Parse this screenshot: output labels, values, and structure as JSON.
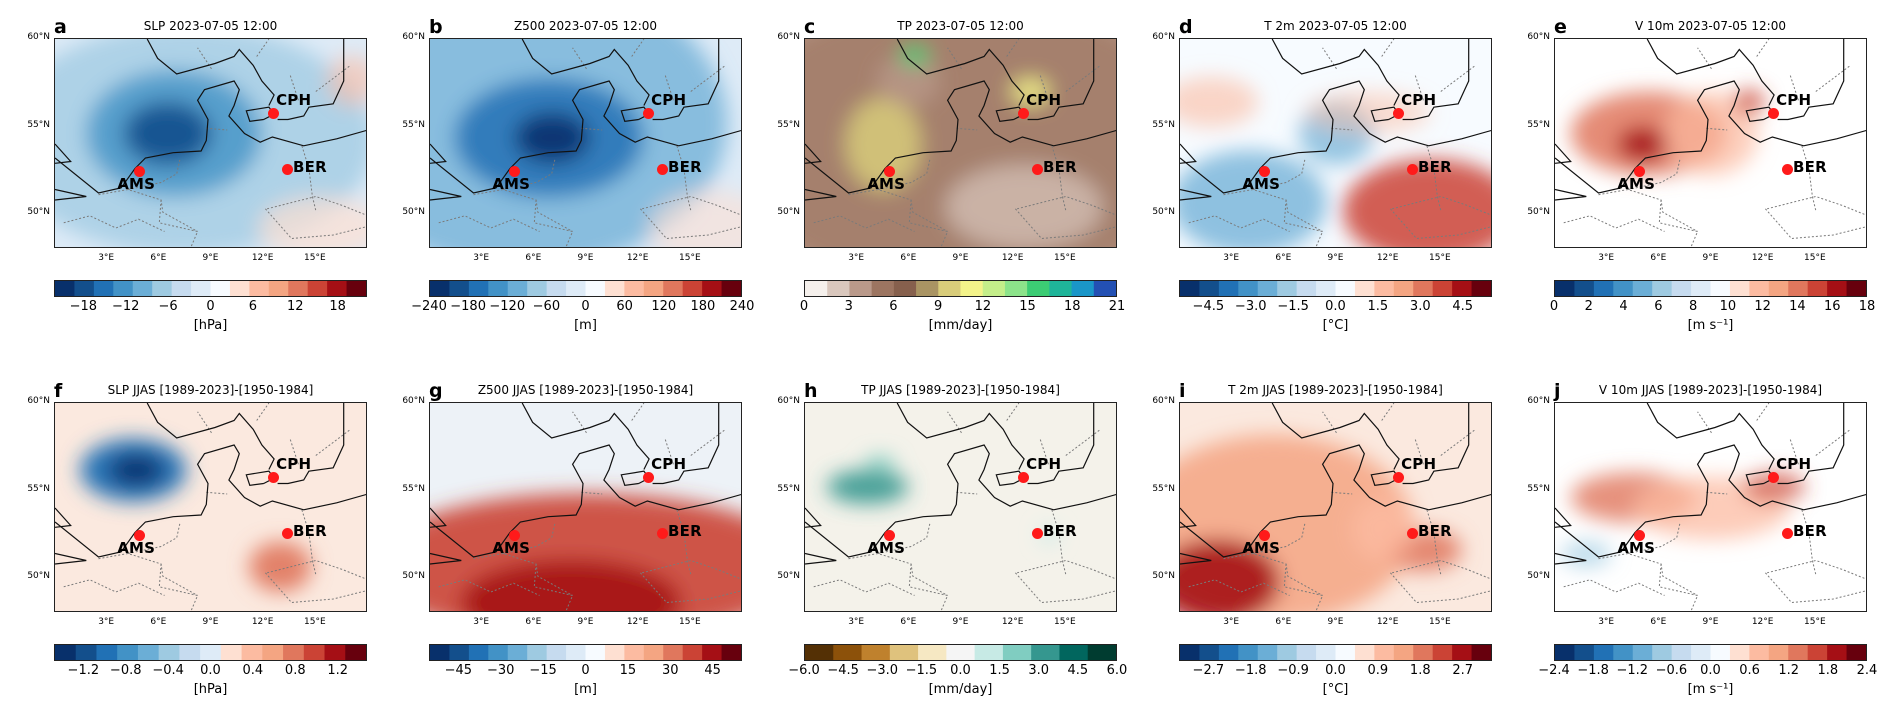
{
  "chart_data": [
    {
      "type": "heatmap",
      "letter": "a",
      "title": "SLP 2023-07-05 12:00",
      "unit": "[hPa]",
      "ticks": [
        "−18",
        "−12",
        "−6",
        "0",
        "6",
        "12",
        "18"
      ],
      "colors": [
        "#08306b",
        "#134f8c",
        "#2171b5",
        "#4292c6",
        "#6baed6",
        "#9ecae1",
        "#c6dbef",
        "#deebf7",
        "#f7fbff",
        "#fee0d2",
        "#fcbba1",
        "#f4a582",
        "#e0775d",
        "#cb4335",
        "#a50f15",
        "#67000d"
      ],
      "blobs": [
        {
          "cx": 0.42,
          "cy": 0.48,
          "rx": 0.6,
          "ry": 0.55,
          "c": "#9ecae1",
          "o": 0.75
        },
        {
          "cx": 0.38,
          "cy": 0.45,
          "rx": 0.28,
          "ry": 0.3,
          "c": "#4292c6",
          "o": 0.8
        },
        {
          "cx": 0.36,
          "cy": 0.45,
          "rx": 0.14,
          "ry": 0.15,
          "c": "#134f8c",
          "o": 0.9
        },
        {
          "cx": 0.85,
          "cy": 0.9,
          "rx": 0.2,
          "ry": 0.15,
          "c": "#fee0d2",
          "o": 0.7
        },
        {
          "cx": 0.95,
          "cy": 0.2,
          "rx": 0.08,
          "ry": 0.12,
          "c": "#fcbba1",
          "o": 0.6
        }
      ],
      "bg": "#deebf7"
    },
    {
      "type": "heatmap",
      "letter": "b",
      "title": "Z500 2023-07-05 12:00",
      "unit": "[m]",
      "ticks": [
        "−240",
        "−180",
        "−120",
        "−60",
        "0",
        "60",
        "120",
        "180",
        "240"
      ],
      "colors": [
        "#08306b",
        "#134f8c",
        "#2171b5",
        "#4292c6",
        "#6baed6",
        "#9ecae1",
        "#c6dbef",
        "#deebf7",
        "#f7fbff",
        "#fee0d2",
        "#fcbba1",
        "#f4a582",
        "#e0775d",
        "#cb4335",
        "#a50f15",
        "#67000d"
      ],
      "blobs": [
        {
          "cx": 0.3,
          "cy": 0.4,
          "rx": 0.65,
          "ry": 0.7,
          "c": "#6baed6",
          "o": 0.75
        },
        {
          "cx": 0.38,
          "cy": 0.47,
          "rx": 0.3,
          "ry": 0.28,
          "c": "#2171b5",
          "o": 0.85
        },
        {
          "cx": 0.39,
          "cy": 0.47,
          "rx": 0.12,
          "ry": 0.12,
          "c": "#08306b",
          "o": 0.9
        },
        {
          "cx": 0.9,
          "cy": 0.9,
          "rx": 0.2,
          "ry": 0.18,
          "c": "#fee0d2",
          "o": 0.6
        }
      ],
      "bg": "#deebf7"
    },
    {
      "type": "heatmap",
      "letter": "c",
      "title": "TP 2023-07-05 12:00",
      "unit": "[mm/day]",
      "ticks": [
        "0",
        "3",
        "6",
        "9",
        "12",
        "15",
        "18",
        "21"
      ],
      "colors": [
        "#f5f0ec",
        "#d9c7bd",
        "#b9998a",
        "#9c7561",
        "#86604d",
        "#a99463",
        "#d8cc7a",
        "#f3f38a",
        "#c4ee8a",
        "#8ce38a",
        "#3ccc74",
        "#1fb59a",
        "#1a96c8",
        "#2350b3"
      ],
      "blobs": [
        {
          "cx": 0.5,
          "cy": 0.5,
          "rx": 0.75,
          "ry": 0.7,
          "c": "#9c7561",
          "o": 0.7
        },
        {
          "cx": 0.25,
          "cy": 0.5,
          "rx": 0.12,
          "ry": 0.22,
          "c": "#d8cc7a",
          "o": 0.85
        },
        {
          "cx": 0.33,
          "cy": 0.2,
          "rx": 0.1,
          "ry": 0.12,
          "c": "#b9998a",
          "o": 0.8
        },
        {
          "cx": 0.35,
          "cy": 0.08,
          "rx": 0.05,
          "ry": 0.05,
          "c": "#3ccc74",
          "o": 0.9
        },
        {
          "cx": 0.7,
          "cy": 0.8,
          "rx": 0.25,
          "ry": 0.2,
          "c": "#d9c7bd",
          "o": 0.7
        },
        {
          "cx": 0.72,
          "cy": 0.25,
          "rx": 0.06,
          "ry": 0.06,
          "c": "#f3f38a",
          "o": 0.9
        }
      ],
      "bg": "#b9998a"
    },
    {
      "type": "heatmap",
      "letter": "d",
      "title": "T 2m 2023-07-05 12:00",
      "unit": "[°C]",
      "ticks": [
        "−4.5",
        "−3.0",
        "−1.5",
        "0.0",
        "1.5",
        "3.0",
        "4.5"
      ],
      "colors": [
        "#08306b",
        "#134f8c",
        "#2171b5",
        "#4292c6",
        "#6baed6",
        "#9ecae1",
        "#c6dbef",
        "#deebf7",
        "#f7fbff",
        "#fee0d2",
        "#fcbba1",
        "#f4a582",
        "#e0775d",
        "#cb4335",
        "#a50f15",
        "#67000d"
      ],
      "blobs": [
        {
          "cx": 0.22,
          "cy": 0.78,
          "rx": 0.25,
          "ry": 0.25,
          "c": "#6baed6",
          "o": 0.75
        },
        {
          "cx": 0.5,
          "cy": 0.45,
          "rx": 0.12,
          "ry": 0.15,
          "c": "#6baed6",
          "o": 0.7
        },
        {
          "cx": 0.8,
          "cy": 0.82,
          "rx": 0.28,
          "ry": 0.25,
          "c": "#cb4335",
          "o": 0.85
        },
        {
          "cx": 0.1,
          "cy": 0.3,
          "rx": 0.15,
          "ry": 0.12,
          "c": "#fcbba1",
          "o": 0.6
        },
        {
          "cx": 0.6,
          "cy": 0.35,
          "rx": 0.2,
          "ry": 0.1,
          "c": "#fcbba1",
          "o": 0.5
        }
      ],
      "bg": "#f7fbff"
    },
    {
      "type": "heatmap",
      "letter": "e",
      "title": "V 10m 2023-07-05 12:00",
      "unit": "[m s⁻¹]",
      "ticks": [
        "0",
        "2",
        "4",
        "6",
        "8",
        "10",
        "12",
        "14",
        "16",
        "18"
      ],
      "colors": [
        "#08306b",
        "#134f8c",
        "#2171b5",
        "#4292c6",
        "#6baed6",
        "#9ecae1",
        "#c6dbef",
        "#deebf7",
        "#f7fbff",
        "#fee0d2",
        "#fcbba1",
        "#f4a582",
        "#e0775d",
        "#cb4335",
        "#a50f15",
        "#67000d"
      ],
      "blobs": [
        {
          "cx": 0.3,
          "cy": 0.45,
          "rx": 0.25,
          "ry": 0.2,
          "c": "#e0775d",
          "o": 0.85
        },
        {
          "cx": 0.28,
          "cy": 0.5,
          "rx": 0.08,
          "ry": 0.08,
          "c": "#a50f15",
          "o": 0.9
        },
        {
          "cx": 0.5,
          "cy": 0.45,
          "rx": 0.15,
          "ry": 0.2,
          "c": "#fcbba1",
          "o": 0.7
        },
        {
          "cx": 0.62,
          "cy": 0.3,
          "rx": 0.05,
          "ry": 0.06,
          "c": "#cb4335",
          "o": 0.8
        }
      ],
      "bg": "#ffffff"
    },
    {
      "type": "heatmap",
      "letter": "f",
      "title": "SLP JJAS [1989-2023]-[1950-1984]",
      "unit": "[hPa]",
      "ticks": [
        "−1.2",
        "−0.8",
        "−0.4",
        "0.0",
        "0.4",
        "0.8",
        "1.2"
      ],
      "colors": [
        "#08306b",
        "#134f8c",
        "#2171b5",
        "#4292c6",
        "#6baed6",
        "#9ecae1",
        "#c6dbef",
        "#deebf7",
        "#fee0d2",
        "#fcbba1",
        "#f4a582",
        "#e0775d",
        "#cb4335",
        "#a50f15",
        "#67000d"
      ],
      "blobs": [
        {
          "cx": 0.25,
          "cy": 0.32,
          "rx": 0.17,
          "ry": 0.15,
          "c": "#2171b5",
          "o": 0.95
        },
        {
          "cx": 0.26,
          "cy": 0.32,
          "rx": 0.09,
          "ry": 0.08,
          "c": "#08306b",
          "o": 0.9
        },
        {
          "cx": 0.72,
          "cy": 0.78,
          "rx": 0.1,
          "ry": 0.12,
          "c": "#e0775d",
          "o": 0.9
        }
      ],
      "bg": "#fbe9df"
    },
    {
      "type": "heatmap",
      "letter": "g",
      "title": "Z500 JJAS [1989-2023]-[1950-1984]",
      "unit": "[m]",
      "ticks": [
        "−45",
        "−30",
        "−15",
        "0",
        "15",
        "30",
        "45"
      ],
      "colors": [
        "#08306b",
        "#134f8c",
        "#2171b5",
        "#4292c6",
        "#6baed6",
        "#9ecae1",
        "#c6dbef",
        "#deebf7",
        "#f7fbff",
        "#fee0d2",
        "#fcbba1",
        "#f4a582",
        "#e0775d",
        "#cb4335",
        "#a50f15",
        "#67000d"
      ],
      "blobs": [
        {
          "cx": 0.5,
          "cy": 0.78,
          "rx": 0.7,
          "ry": 0.35,
          "c": "#cb4335",
          "o": 0.9
        },
        {
          "cx": 0.45,
          "cy": 0.95,
          "rx": 0.35,
          "ry": 0.2,
          "c": "#a50f15",
          "o": 0.9
        }
      ],
      "bg": "#edf2f7"
    },
    {
      "type": "heatmap",
      "letter": "h",
      "title": "TP JJAS [1989-2023]-[1950-1984]",
      "unit": "[mm/day]",
      "ticks": [
        "−6.0",
        "−4.5",
        "−3.0",
        "−1.5",
        "0.0",
        "1.5",
        "3.0",
        "4.5",
        "6.0"
      ],
      "colors": [
        "#543005",
        "#8c510a",
        "#bf812d",
        "#dfc27d",
        "#f6e8c3",
        "#f5f5f5",
        "#c7eae5",
        "#80cdc1",
        "#35978f",
        "#01665e",
        "#003c30"
      ],
      "blobs": [
        {
          "cx": 0.2,
          "cy": 0.4,
          "rx": 0.13,
          "ry": 0.08,
          "c": "#35978f",
          "o": 0.9
        },
        {
          "cx": 0.24,
          "cy": 0.29,
          "rx": 0.05,
          "ry": 0.04,
          "c": "#80cdc1",
          "o": 0.85
        },
        {
          "cx": 0.78,
          "cy": 0.63,
          "rx": 0.03,
          "ry": 0.04,
          "c": "#c7eae5",
          "o": 0.9
        }
      ],
      "bg": "#f4f2ea"
    },
    {
      "type": "heatmap",
      "letter": "i",
      "title": "T 2m JJAS [1989-2023]-[1950-1984]",
      "unit": "[°C]",
      "ticks": [
        "−2.7",
        "−1.8",
        "−0.9",
        "0.0",
        "0.9",
        "1.8",
        "2.7"
      ],
      "colors": [
        "#08306b",
        "#134f8c",
        "#2171b5",
        "#4292c6",
        "#6baed6",
        "#9ecae1",
        "#c6dbef",
        "#deebf7",
        "#f7fbff",
        "#fee0d2",
        "#fcbba1",
        "#f4a582",
        "#e0775d",
        "#cb4335",
        "#a50f15",
        "#67000d"
      ],
      "blobs": [
        {
          "cx": 0.3,
          "cy": 0.6,
          "rx": 0.45,
          "ry": 0.45,
          "c": "#f4a582",
          "o": 0.85
        },
        {
          "cx": 0.12,
          "cy": 0.85,
          "rx": 0.2,
          "ry": 0.2,
          "c": "#a50f15",
          "o": 0.9
        },
        {
          "cx": 0.78,
          "cy": 0.7,
          "rx": 0.12,
          "ry": 0.1,
          "c": "#e0775d",
          "o": 0.85
        },
        {
          "cx": 0.65,
          "cy": 0.6,
          "rx": 0.1,
          "ry": 0.15,
          "c": "#fcbba1",
          "o": 0.8
        }
      ],
      "bg": "#fbe9df"
    },
    {
      "type": "heatmap",
      "letter": "j",
      "title": "V 10m JJAS [1989-2023]-[1950-1984]",
      "unit": "[m s⁻¹]",
      "ticks": [
        "−2.4",
        "−1.8",
        "−1.2",
        "−0.6",
        "0.0",
        "0.6",
        "1.2",
        "1.8",
        "2.4"
      ],
      "colors": [
        "#08306b",
        "#134f8c",
        "#2171b5",
        "#4292c6",
        "#6baed6",
        "#9ecae1",
        "#c6dbef",
        "#deebf7",
        "#f7fbff",
        "#fee0d2",
        "#fcbba1",
        "#f4a582",
        "#e0775d",
        "#cb4335",
        "#a50f15",
        "#67000d"
      ],
      "blobs": [
        {
          "cx": 0.25,
          "cy": 0.45,
          "rx": 0.2,
          "ry": 0.12,
          "c": "#e0775d",
          "o": 0.8
        },
        {
          "cx": 0.5,
          "cy": 0.5,
          "rx": 0.25,
          "ry": 0.15,
          "c": "#fcbba1",
          "o": 0.75
        },
        {
          "cx": 0.7,
          "cy": 0.4,
          "rx": 0.1,
          "ry": 0.07,
          "c": "#cb4335",
          "o": 0.7
        },
        {
          "cx": 0.1,
          "cy": 0.72,
          "rx": 0.08,
          "ry": 0.06,
          "c": "#9ecae1",
          "o": 0.7
        }
      ],
      "bg": "#ffffff"
    }
  ],
  "axes": {
    "lat_labels": [
      "60°N",
      "55°N",
      "50°N"
    ],
    "lon_labels": [
      "3°E",
      "6°E",
      "9°E",
      "12°E",
      "15°E"
    ]
  },
  "cities": [
    {
      "name": "CPH",
      "lon": 12.6,
      "lat": 55.7
    },
    {
      "name": "AMS",
      "lon": 4.9,
      "lat": 52.4
    },
    {
      "name": "BER",
      "lon": 13.4,
      "lat": 52.5
    }
  ],
  "extent": {
    "lon_min": 0,
    "lon_max": 18,
    "lat_min": 48,
    "lat_max": 60
  }
}
